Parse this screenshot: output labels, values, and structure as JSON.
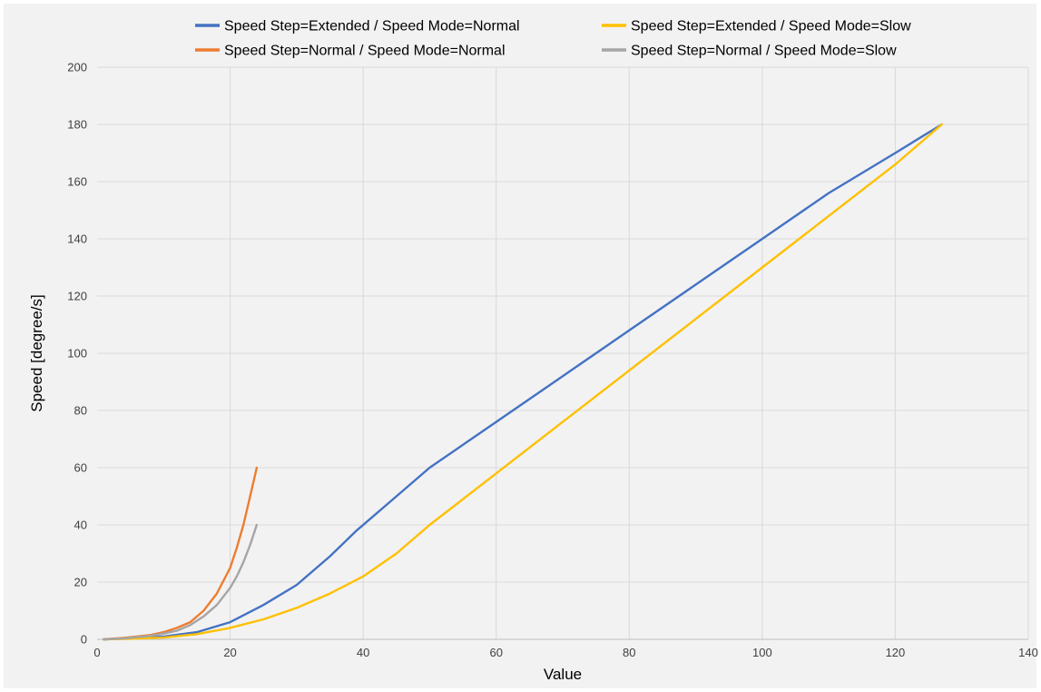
{
  "chart_data": {
    "type": "line",
    "xlabel": "Value",
    "ylabel": "Speed [degree/s]",
    "xlim": [
      0,
      140
    ],
    "ylim": [
      0,
      200
    ],
    "xticks": [
      0,
      20,
      40,
      60,
      80,
      100,
      120,
      140
    ],
    "yticks": [
      0,
      20,
      40,
      60,
      80,
      100,
      120,
      140,
      160,
      180,
      200
    ],
    "grid": true,
    "legend_position": "top",
    "series": [
      {
        "name": "Speed Step=Extended / Speed Mode=Normal",
        "color": "#4472c4",
        "x": [
          1,
          5,
          10,
          15,
          20,
          25,
          30,
          35,
          39,
          45,
          50,
          60,
          70,
          80,
          90,
          100,
          110,
          120,
          127
        ],
        "y": [
          0,
          0.3,
          1,
          2.5,
          6,
          12,
          19,
          29,
          38,
          50,
          60,
          76,
          92,
          108,
          124,
          140,
          156,
          170,
          180
        ]
      },
      {
        "name": "Speed Step=Extended / Speed Mode=Slow",
        "color": "#ffc000",
        "x": [
          1,
          5,
          10,
          15,
          20,
          25,
          30,
          35,
          40,
          45,
          50,
          60,
          70,
          80,
          90,
          100,
          110,
          120,
          127
        ],
        "y": [
          0,
          0.2,
          0.6,
          1.8,
          4,
          7,
          11,
          16,
          22,
          30,
          40,
          58,
          76,
          94,
          112,
          130,
          148,
          166,
          180
        ]
      },
      {
        "name": "Speed Step=Normal / Speed Mode=Normal",
        "color": "#ed7d31",
        "x": [
          1,
          4,
          8,
          10,
          12,
          14,
          16,
          18,
          20,
          21,
          22,
          23,
          24
        ],
        "y": [
          0,
          0.5,
          1.5,
          2.5,
          4,
          6,
          10,
          16,
          25,
          32,
          40,
          50,
          60
        ]
      },
      {
        "name": "Speed Step=Normal / Speed Mode=Slow",
        "color": "#a5a5a5",
        "x": [
          1,
          4,
          8,
          10,
          12,
          14,
          16,
          18,
          20,
          21,
          22,
          23,
          24
        ],
        "y": [
          0,
          0.3,
          1.2,
          2,
          3,
          5,
          8,
          12,
          18,
          22,
          27,
          33,
          40
        ]
      }
    ]
  }
}
